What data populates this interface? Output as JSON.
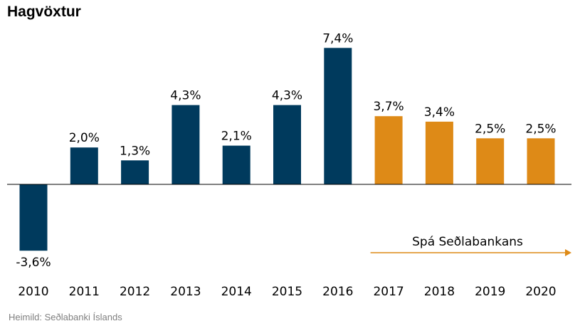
{
  "title": "Hagvöxtur",
  "source": "Heimild: Seðlabanki Íslands",
  "forecast_label": "Spá Seðlabankans",
  "colors": {
    "actual": "#003a5d",
    "forecast": "#de8a17",
    "axis": "#000000",
    "source_text": "#7f7f7f"
  },
  "chart_data": {
    "type": "bar",
    "title": "Hagvöxtur",
    "categories": [
      "2010",
      "2011",
      "2012",
      "2013",
      "2014",
      "2015",
      "2016",
      "2017",
      "2018",
      "2019",
      "2020"
    ],
    "values": [
      -3.6,
      2.0,
      1.3,
      4.3,
      2.1,
      4.3,
      7.4,
      3.7,
      3.4,
      2.5,
      2.5
    ],
    "labels": [
      "-3,6%",
      "2,0%",
      "1,3%",
      "4,3%",
      "2,1%",
      "4,3%",
      "7,4%",
      "3,7%",
      "3,4%",
      "2,5%",
      "2,5%"
    ],
    "forecast": [
      false,
      false,
      false,
      false,
      false,
      false,
      false,
      true,
      true,
      true,
      true
    ],
    "grid": false,
    "legend": "none",
    "annotation": {
      "text": "Spá Seðlabankans",
      "from_category": "2017",
      "to_category": "2020",
      "arrow": true
    }
  }
}
